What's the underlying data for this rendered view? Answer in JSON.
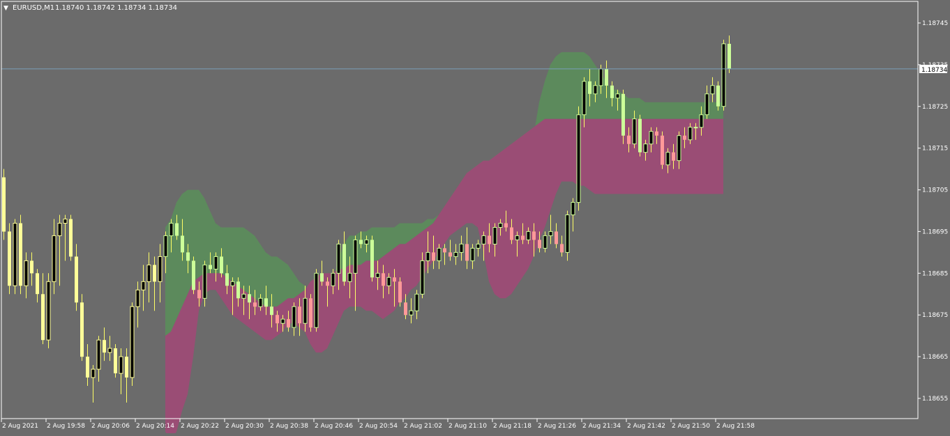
{
  "header": {
    "menu_glyph": "▼",
    "symbol": "EURUSD,M1",
    "ohlc": "1.18740 1.18742 1.18734 1.18734"
  },
  "price_scale": {
    "labels": [
      "1.18745",
      "1.18735",
      "1.18725",
      "1.18715",
      "1.18705",
      "1.18695",
      "1.18685",
      "1.18675",
      "1.18665",
      "1.18655"
    ],
    "current_price_label": "1.18734"
  },
  "time_scale": {
    "labels": [
      "2 Aug 2021",
      "2 Aug 19:58",
      "2 Aug 20:06",
      "2 Aug 20:14",
      "2 Aug 20:22",
      "2 Aug 20:30",
      "2 Aug 20:38",
      "2 Aug 20:46",
      "2 Aug 20:54",
      "2 Aug 21:02",
      "2 Aug 21:10",
      "2 Aug 21:18",
      "2 Aug 21:26",
      "2 Aug 21:34",
      "2 Aug 21:42",
      "2 Aug 21:50",
      "2 Aug 21:58"
    ]
  },
  "colors": {
    "background": "#6b6b6b",
    "frame": "#ffffff",
    "bull_candle_outside": "#ffff99",
    "bull_candle_inside": "#ccff99",
    "bear_candle_inside_red": "#ff9999",
    "candle_outline": "#000000",
    "wick": "#ffff66",
    "upper_band_fill": "#5c8a5c",
    "lower_band_fill": "#9a4d75",
    "price_line": "#7a9eb8"
  },
  "chart_data": {
    "type": "candlestick",
    "symbol": "EURUSD",
    "timeframe": "M1",
    "ylim": [
      1.1865,
      1.1875
    ],
    "y_ticks": [
      1.18745,
      1.18735,
      1.18725,
      1.18715,
      1.18705,
      1.18695,
      1.18685,
      1.18675,
      1.18665,
      1.18655
    ],
    "x_ticks": [
      "2 Aug 2021",
      "2 Aug 19:58",
      "2 Aug 20:06",
      "2 Aug 20:14",
      "2 Aug 20:22",
      "2 Aug 20:30",
      "2 Aug 20:38",
      "2 Aug 20:46",
      "2 Aug 20:54",
      "2 Aug 21:02",
      "2 Aug 21:10",
      "2 Aug 21:18",
      "2 Aug 21:26",
      "2 Aug 21:34",
      "2 Aug 21:42",
      "2 Aug 21:50",
      "2 Aug 21:58"
    ],
    "current_price": 1.18734,
    "bars_count": 130,
    "band_start_index": 29,
    "candles": [
      [
        1.18708,
        1.1871,
        1.18693,
        1.18695
      ],
      [
        1.18695,
        1.18697,
        1.1868,
        1.18682
      ],
      [
        1.18682,
        1.18698,
        1.1868,
        1.18697
      ],
      [
        1.18697,
        1.18699,
        1.1868,
        1.18682
      ],
      [
        1.18682,
        1.1869,
        1.18679,
        1.18688
      ],
      [
        1.18688,
        1.1869,
        1.18682,
        1.18685
      ],
      [
        1.18685,
        1.18686,
        1.18678,
        1.1868
      ],
      [
        1.1868,
        1.18685,
        1.18668,
        1.18669
      ],
      [
        1.18669,
        1.18685,
        1.18667,
        1.18683
      ],
      [
        1.18683,
        1.18698,
        1.1868,
        1.18694
      ],
      [
        1.18694,
        1.18699,
        1.18682,
        1.18697
      ],
      [
        1.18697,
        1.18699,
        1.18688,
        1.18698
      ],
      [
        1.18698,
        1.18699,
        1.18688,
        1.18689
      ],
      [
        1.18689,
        1.18692,
        1.18676,
        1.18678
      ],
      [
        1.18678,
        1.1868,
        1.18664,
        1.18665
      ],
      [
        1.18665,
        1.18668,
        1.18658,
        1.1866
      ],
      [
        1.1866,
        1.18663,
        1.18654,
        1.18662
      ],
      [
        1.18662,
        1.1867,
        1.18659,
        1.18669
      ],
      [
        1.18669,
        1.18672,
        1.18664,
        1.18666
      ],
      [
        1.18666,
        1.1867,
        1.18664,
        1.18667
      ],
      [
        1.18667,
        1.18668,
        1.1866,
        1.18661
      ],
      [
        1.18661,
        1.18667,
        1.18656,
        1.18665
      ],
      [
        1.18665,
        1.18667,
        1.18654,
        1.1866
      ],
      [
        1.1866,
        1.18678,
        1.18658,
        1.18677
      ],
      [
        1.18677,
        1.18683,
        1.18672,
        1.18681
      ],
      [
        1.18681,
        1.18687,
        1.18676,
        1.18683
      ],
      [
        1.18683,
        1.1869,
        1.18678,
        1.18687
      ],
      [
        1.18687,
        1.18689,
        1.18676,
        1.18683
      ],
      [
        1.18683,
        1.18692,
        1.18678,
        1.18689
      ],
      [
        1.18689,
        1.18695,
        1.18685,
        1.18694
      ],
      [
        1.18694,
        1.18698,
        1.1869,
        1.18697
      ],
      [
        1.18697,
        1.18699,
        1.18693,
        1.18694
      ],
      [
        1.18694,
        1.18698,
        1.18688,
        1.1869
      ],
      [
        1.1869,
        1.18692,
        1.18685,
        1.18688
      ],
      [
        1.18688,
        1.18689,
        1.1868,
        1.18681
      ],
      [
        1.18681,
        1.18683,
        1.18677,
        1.18679
      ],
      [
        1.18679,
        1.18688,
        1.18677,
        1.18687
      ],
      [
        1.18687,
        1.1869,
        1.18685,
        1.18686
      ],
      [
        1.18686,
        1.1869,
        1.18683,
        1.18689
      ],
      [
        1.18689,
        1.18691,
        1.18684,
        1.18685
      ],
      [
        1.18685,
        1.18687,
        1.1868,
        1.18682
      ],
      [
        1.18682,
        1.18684,
        1.18675,
        1.18683
      ],
      [
        1.18683,
        1.18684,
        1.18677,
        1.18679
      ],
      [
        1.18679,
        1.18682,
        1.18675,
        1.1868
      ],
      [
        1.1868,
        1.18682,
        1.18674,
        1.18678
      ],
      [
        1.18678,
        1.18681,
        1.18675,
        1.18677
      ],
      [
        1.18677,
        1.1868,
        1.18676,
        1.18679
      ],
      [
        1.18679,
        1.18682,
        1.18675,
        1.18677
      ],
      [
        1.18677,
        1.1868,
        1.18672,
        1.18675
      ],
      [
        1.18675,
        1.18676,
        1.18671,
        1.18673
      ],
      [
        1.18673,
        1.18675,
        1.18671,
        1.18674
      ],
      [
        1.18674,
        1.18676,
        1.18671,
        1.18672
      ],
      [
        1.18672,
        1.18678,
        1.1867,
        1.18677
      ],
      [
        1.18677,
        1.18679,
        1.1867,
        1.18673
      ],
      [
        1.18673,
        1.18682,
        1.18671,
        1.18679
      ],
      [
        1.18679,
        1.1868,
        1.18671,
        1.18672
      ],
      [
        1.18672,
        1.18686,
        1.18671,
        1.18685
      ],
      [
        1.18685,
        1.18688,
        1.18682,
        1.18683
      ],
      [
        1.18683,
        1.18684,
        1.18677,
        1.18682
      ],
      [
        1.18682,
        1.18686,
        1.1868,
        1.18685
      ],
      [
        1.18685,
        1.18693,
        1.18681,
        1.18692
      ],
      [
        1.18692,
        1.18695,
        1.18682,
        1.18683
      ],
      [
        1.18683,
        1.18689,
        1.18679,
        1.18685
      ],
      [
        1.18685,
        1.18694,
        1.18676,
        1.18693
      ],
      [
        1.18693,
        1.18695,
        1.18691,
        1.18692
      ],
      [
        1.18692,
        1.18694,
        1.1869,
        1.18693
      ],
      [
        1.18693,
        1.18694,
        1.18683,
        1.18684
      ],
      [
        1.18684,
        1.18688,
        1.18681,
        1.18685
      ],
      [
        1.18685,
        1.18687,
        1.18679,
        1.18682
      ],
      [
        1.18682,
        1.18685,
        1.1868,
        1.18684
      ],
      [
        1.18684,
        1.18686,
        1.18677,
        1.18683
      ],
      [
        1.18683,
        1.18684,
        1.18677,
        1.18678
      ],
      [
        1.18678,
        1.1868,
        1.18674,
        1.18675
      ],
      [
        1.18675,
        1.18679,
        1.18673,
        1.18676
      ],
      [
        1.18676,
        1.18681,
        1.18674,
        1.1868
      ],
      [
        1.1868,
        1.1869,
        1.18679,
        1.18688
      ],
      [
        1.18688,
        1.18695,
        1.18685,
        1.1869
      ],
      [
        1.1869,
        1.18694,
        1.18686,
        1.18688
      ],
      [
        1.18688,
        1.18692,
        1.18686,
        1.18691
      ],
      [
        1.18691,
        1.18692,
        1.18687,
        1.1869
      ],
      [
        1.1869,
        1.18693,
        1.18688,
        1.18689
      ],
      [
        1.18689,
        1.18692,
        1.18687,
        1.1869
      ],
      [
        1.1869,
        1.18694,
        1.18688,
        1.18692
      ],
      [
        1.18692,
        1.18696,
        1.18686,
        1.18688
      ],
      [
        1.18688,
        1.18692,
        1.18686,
        1.18691
      ],
      [
        1.18691,
        1.18693,
        1.18689,
        1.18692
      ],
      [
        1.18692,
        1.18695,
        1.18688,
        1.18694
      ],
      [
        1.18694,
        1.18697,
        1.1869,
        1.18692
      ],
      [
        1.18692,
        1.18697,
        1.18689,
        1.18696
      ],
      [
        1.18696,
        1.18698,
        1.18694,
        1.18697
      ],
      [
        1.18697,
        1.187,
        1.18695,
        1.18696
      ],
      [
        1.18696,
        1.18698,
        1.18692,
        1.18693
      ],
      [
        1.18693,
        1.18695,
        1.18689,
        1.18694
      ],
      [
        1.18694,
        1.18697,
        1.18692,
        1.18693
      ],
      [
        1.18693,
        1.18696,
        1.18692,
        1.18695
      ],
      [
        1.18695,
        1.18697,
        1.18689,
        1.18693
      ],
      [
        1.18693,
        1.18695,
        1.1869,
        1.18691
      ],
      [
        1.18691,
        1.18695,
        1.1869,
        1.18694
      ],
      [
        1.18694,
        1.18699,
        1.18692,
        1.18695
      ],
      [
        1.18695,
        1.18697,
        1.18691,
        1.18692
      ],
      [
        1.18692,
        1.18694,
        1.18689,
        1.1869
      ],
      [
        1.1869,
        1.187,
        1.18688,
        1.18699
      ],
      [
        1.18699,
        1.18703,
        1.18695,
        1.18702
      ],
      [
        1.18702,
        1.18725,
        1.187,
        1.18723
      ],
      [
        1.18723,
        1.18732,
        1.1872,
        1.18731
      ],
      [
        1.18731,
        1.18734,
        1.18725,
        1.18728
      ],
      [
        1.18728,
        1.18731,
        1.18726,
        1.1873
      ],
      [
        1.1873,
        1.18735,
        1.18728,
        1.18734
      ],
      [
        1.18734,
        1.18736,
        1.18727,
        1.1873
      ],
      [
        1.1873,
        1.18731,
        1.18725,
        1.18727
      ],
      [
        1.18727,
        1.18729,
        1.18724,
        1.18728
      ],
      [
        1.18728,
        1.18729,
        1.18716,
        1.18718
      ],
      [
        1.18718,
        1.1872,
        1.18714,
        1.18716
      ],
      [
        1.18716,
        1.18724,
        1.18715,
        1.18722
      ],
      [
        1.18722,
        1.18723,
        1.18713,
        1.18714
      ],
      [
        1.18714,
        1.18717,
        1.18712,
        1.18716
      ],
      [
        1.18716,
        1.1872,
        1.18714,
        1.18719
      ],
      [
        1.18719,
        1.1872,
        1.18716,
        1.18718
      ],
      [
        1.18718,
        1.18719,
        1.1871,
        1.18711
      ],
      [
        1.18711,
        1.18715,
        1.18709,
        1.18714
      ],
      [
        1.18714,
        1.18716,
        1.1871,
        1.18712
      ],
      [
        1.18712,
        1.18719,
        1.1871,
        1.18718
      ],
      [
        1.18718,
        1.1872,
        1.18715,
        1.18717
      ],
      [
        1.18717,
        1.18721,
        1.18716,
        1.1872
      ],
      [
        1.1872,
        1.18721,
        1.18717,
        1.1872
      ],
      [
        1.1872,
        1.18725,
        1.18718,
        1.18723
      ],
      [
        1.18723,
        1.1873,
        1.18722,
        1.18728
      ],
      [
        1.18728,
        1.18732,
        1.18726,
        1.1873
      ],
      [
        1.1873,
        1.18731,
        1.18724,
        1.18725
      ],
      [
        1.18725,
        1.18741,
        1.18724,
        1.1874
      ],
      [
        1.1874,
        1.18742,
        1.18733,
        1.18734
      ]
    ],
    "upper_band_top": [
      1.18696,
      1.18698,
      1.18702,
      1.18704,
      1.18705,
      1.18705,
      1.18705,
      1.18703,
      1.187,
      1.18697,
      1.18696,
      1.18696,
      1.18696,
      1.18696,
      1.18696,
      1.18695,
      1.18694,
      1.18692,
      1.1869,
      1.18689,
      1.18689,
      1.18688,
      1.18687,
      1.18685,
      1.18683,
      1.18682,
      1.18681,
      1.1868,
      1.18679,
      1.1868,
      1.18683,
      1.18688,
      1.18692,
      1.18694,
      1.18694,
      1.18695,
      1.18695,
      1.18696,
      1.18696,
      1.18696,
      1.18696,
      1.18696,
      1.18697,
      1.18697,
      1.18697,
      1.18697,
      1.18697,
      1.18698,
      1.18698,
      1.18699,
      1.18699,
      1.187,
      1.18702,
      1.18703,
      1.18704,
      1.18706,
      1.18705,
      1.18703,
      1.18701,
      1.18701,
      1.18701,
      1.18701,
      1.187,
      1.187,
      1.187,
      1.18708,
      1.18718,
      1.18726,
      1.18731,
      1.18735,
      1.18737,
      1.18738,
      1.18738,
      1.18738,
      1.18738,
      1.18738,
      1.18737,
      1.18735,
      1.18733,
      1.18731,
      1.18729,
      1.18729,
      1.18728,
      1.18727,
      1.18727,
      1.18727,
      1.18726,
      1.18726,
      1.18726,
      1.18726,
      1.18726,
      1.18726,
      1.18726,
      1.18726,
      1.18726,
      1.18726,
      1.18726,
      1.18726,
      1.18726,
      1.18726,
      1.18726
    ],
    "middle_band": [
      1.1867,
      1.18671,
      1.18674,
      1.18677,
      1.1868,
      1.18683,
      1.18684,
      1.18685,
      1.18685,
      1.18685,
      1.18685,
      1.18684,
      1.18683,
      1.18682,
      1.18681,
      1.1868,
      1.18679,
      1.18678,
      1.18677,
      1.18677,
      1.18677,
      1.18678,
      1.18679,
      1.18679,
      1.1868,
      1.18681,
      1.18683,
      1.18684,
      1.18685,
      1.18685,
      1.18685,
      1.18686,
      1.18686,
      1.18687,
      1.18687,
      1.18687,
      1.18688,
      1.18688,
      1.18688,
      1.18689,
      1.1869,
      1.18691,
      1.18692,
      1.18692,
      1.18693,
      1.18694,
      1.18695,
      1.18696,
      1.18697,
      1.18699,
      1.18701,
      1.18703,
      1.18705,
      1.18707,
      1.18709,
      1.1871,
      1.18711,
      1.18712,
      1.18712,
      1.18713,
      1.18714,
      1.18715,
      1.18716,
      1.18717,
      1.18718,
      1.18719,
      1.1872,
      1.18721,
      1.18722,
      1.18722,
      1.18722,
      1.18722,
      1.18722,
      1.18722,
      1.18722,
      1.18722,
      1.18722,
      1.18722,
      1.18722,
      1.18722,
      1.18722,
      1.18722,
      1.18722,
      1.18722,
      1.18722,
      1.18722,
      1.18722,
      1.18722,
      1.18722,
      1.18722,
      1.18722,
      1.18722,
      1.18722,
      1.18722,
      1.18722,
      1.18722,
      1.18722,
      1.18722,
      1.18722,
      1.18722,
      1.18722
    ],
    "lower_band_bottom": [
      1.18647,
      1.18645,
      1.18647,
      1.18652,
      1.18656,
      1.18665,
      1.18676,
      1.1868,
      1.18681,
      1.18681,
      1.18679,
      1.18677,
      1.18675,
      1.18674,
      1.18673,
      1.18672,
      1.18671,
      1.1867,
      1.18669,
      1.18669,
      1.1867,
      1.18671,
      1.18673,
      1.18673,
      1.18672,
      1.18671,
      1.18668,
      1.18666,
      1.18666,
      1.18667,
      1.1867,
      1.18673,
      1.18676,
      1.18677,
      1.18677,
      1.18677,
      1.18676,
      1.18676,
      1.18675,
      1.18674,
      1.18675,
      1.18676,
      1.18678,
      1.18679,
      1.18681,
      1.18682,
      1.18684,
      1.18686,
      1.18688,
      1.1869,
      1.18692,
      1.18694,
      1.18695,
      1.18696,
      1.18697,
      1.18697,
      1.18696,
      1.1869,
      1.18683,
      1.1868,
      1.18679,
      1.18679,
      1.1868,
      1.18682,
      1.18684,
      1.18686,
      1.18689,
      1.18693,
      1.18696,
      1.187,
      1.18704,
      1.18707,
      1.18707,
      1.18707,
      1.18706,
      1.18706,
      1.18705,
      1.18704,
      1.18704,
      1.18704,
      1.18704,
      1.18704,
      1.18704,
      1.18704,
      1.18704,
      1.18704,
      1.18704,
      1.18704,
      1.18704,
      1.18704,
      1.18704,
      1.18704,
      1.18704,
      1.18704,
      1.18704,
      1.18704,
      1.18704,
      1.18704,
      1.18704,
      1.18704,
      1.18704
    ]
  }
}
